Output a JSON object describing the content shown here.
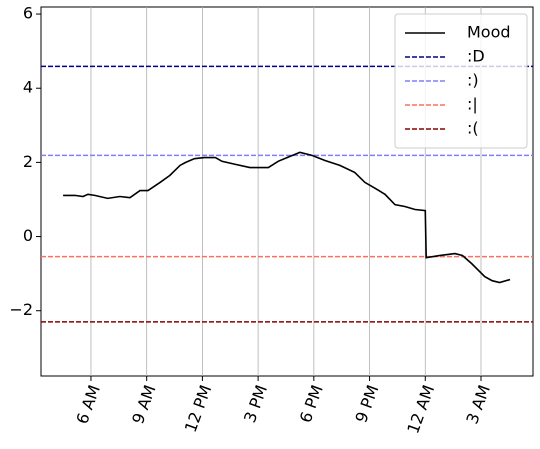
{
  "chart_data": {
    "type": "line",
    "series": [
      {
        "name": "Mood",
        "color": "#000000",
        "x": [
          4.5,
          5.14,
          5.57,
          5.84,
          6.2,
          6.9,
          7.56,
          8.1,
          8.64,
          9.07,
          9.72,
          10.25,
          10.8,
          11.1,
          11.57,
          12.1,
          12.7,
          13.05,
          13.75,
          14.56,
          15,
          15.55,
          16.08,
          16.7,
          17.25,
          17.9,
          18.6,
          19.4,
          20.2,
          20.75,
          21.3,
          21.83,
          22.37,
          22.9,
          23.45,
          24,
          24.05,
          24.8,
          25.6,
          26,
          26.5,
          27.2,
          27.6,
          28.0,
          28.56
        ],
        "values": [
          1.11,
          1.11,
          1.08,
          1.14,
          1.11,
          1.03,
          1.08,
          1.05,
          1.24,
          1.24,
          1.46,
          1.65,
          1.92,
          2.0,
          2.1,
          2.13,
          2.13,
          2.03,
          1.95,
          1.86,
          1.86,
          1.86,
          2.03,
          2.16,
          2.27,
          2.19,
          2.05,
          1.92,
          1.73,
          1.46,
          1.3,
          1.14,
          0.86,
          0.81,
          0.73,
          0.7,
          -0.57,
          -0.51,
          -0.46,
          -0.51,
          -0.73,
          -1.08,
          -1.19,
          -1.24,
          -1.16
        ]
      }
    ],
    "hlines": [
      {
        "name": ":D",
        "color": "#00008b",
        "value": 4.59
      },
      {
        "name": ":)",
        "color": "#7f7fff",
        "value": 2.19
      },
      {
        "name": ":|",
        "color": "#ff6f5f",
        "value": -0.54
      },
      {
        "name": ":(",
        "color": "#8b0000",
        "value": -2.3
      }
    ],
    "xlim": [
      3.31,
      29.8
    ],
    "xticks": [
      {
        "value": 6,
        "label": "6 AM"
      },
      {
        "value": 9,
        "label": "9 AM"
      },
      {
        "value": 12,
        "label": "12 PM"
      },
      {
        "value": 15,
        "label": "3 PM"
      },
      {
        "value": 18,
        "label": "6 PM"
      },
      {
        "value": 21,
        "label": "9 PM"
      },
      {
        "value": 24,
        "label": "12 AM"
      },
      {
        "value": 27,
        "label": "3 AM"
      }
    ],
    "ylim": [
      -3.76,
      6.19
    ],
    "yticks": [
      {
        "value": -2,
        "label": "−2"
      },
      0,
      2,
      4,
      6
    ],
    "grid": "x",
    "legend": "upper right"
  }
}
